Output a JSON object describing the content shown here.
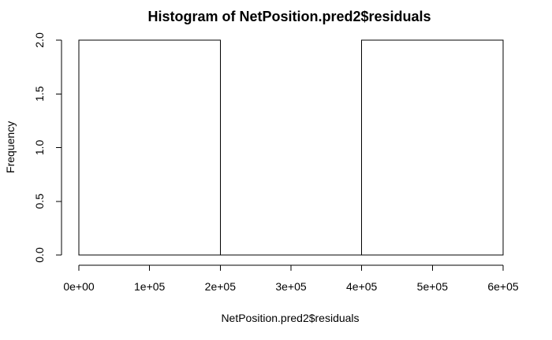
{
  "chart_data": {
    "type": "bar",
    "title": "Histogram of NetPosition.pred2$residuals",
    "xlabel": "NetPosition.pred2$residuals",
    "ylabel": "Frequency",
    "bins": [
      {
        "start": 0,
        "end": 200000,
        "count": 2
      },
      {
        "start": 200000,
        "end": 400000,
        "count": 0
      },
      {
        "start": 400000,
        "end": 600000,
        "count": 2
      }
    ],
    "xlim": [
      0,
      600000
    ],
    "ylim": [
      0,
      2
    ],
    "x_ticks": [
      {
        "value": 0,
        "label": "0e+00"
      },
      {
        "value": 100000,
        "label": "1e+05"
      },
      {
        "value": 200000,
        "label": "2e+05"
      },
      {
        "value": 300000,
        "label": "3e+05"
      },
      {
        "value": 400000,
        "label": "4e+05"
      },
      {
        "value": 500000,
        "label": "5e+05"
      },
      {
        "value": 600000,
        "label": "6e+05"
      }
    ],
    "y_ticks": [
      {
        "value": 0,
        "label": "0.0"
      },
      {
        "value": 0.5,
        "label": "0.5"
      },
      {
        "value": 1,
        "label": "1.0"
      },
      {
        "value": 1.5,
        "label": "1.5"
      },
      {
        "value": 2,
        "label": "2.0"
      }
    ],
    "grid": false,
    "legend": "none",
    "colors": {
      "bar_fill": "#ffffff",
      "bar_stroke": "#000000"
    }
  }
}
